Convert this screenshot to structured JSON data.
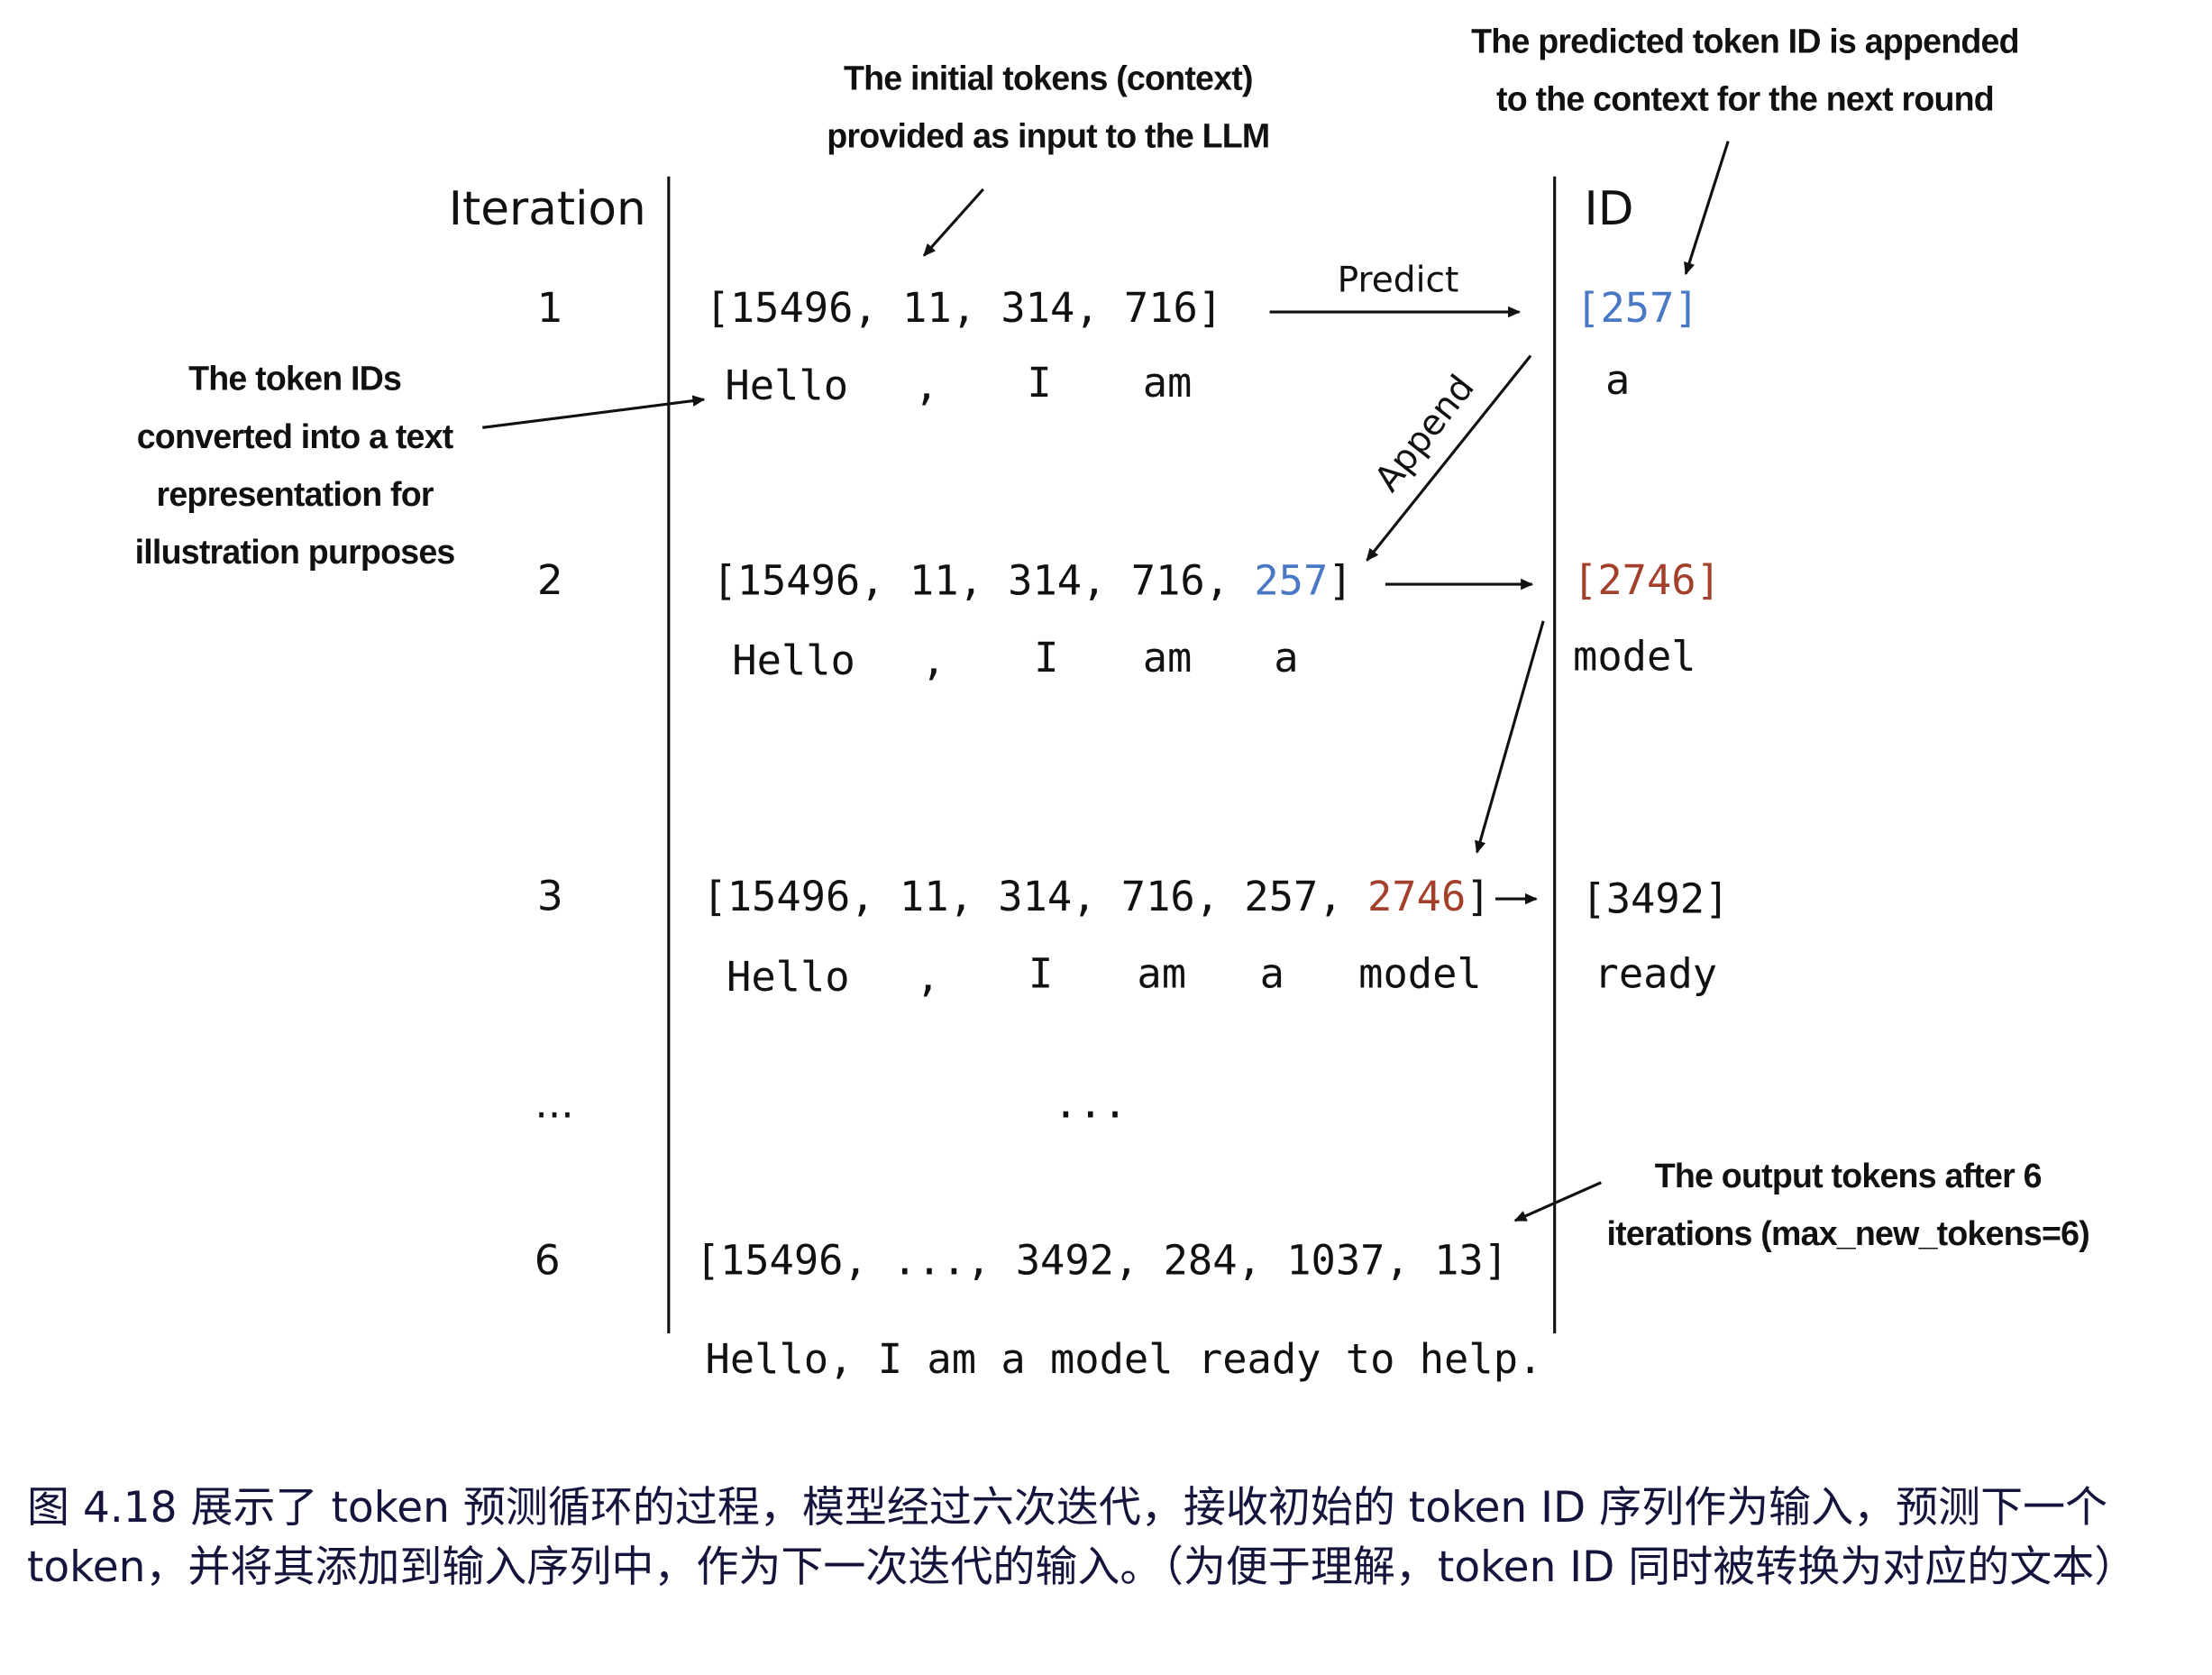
{
  "annotations": {
    "context": [
      "The initial tokens (context)",
      "provided as input to the LLM"
    ],
    "appended": [
      "The predicted token ID is appended",
      "to the context for the next round"
    ],
    "text_repr": [
      "The token IDs",
      "converted into a text",
      "representation for",
      "illustration purposes"
    ],
    "output": [
      "The output tokens after 6",
      "iterations (max_new_tokens=6)"
    ]
  },
  "headers": {
    "iteration": "Iteration",
    "id": "ID"
  },
  "labels": {
    "predict": "Predict",
    "append": "Append"
  },
  "colors": {
    "blue": "#4a78c4",
    "red": "#a3402c"
  },
  "rows": [
    {
      "iteration": "1",
      "ids": "[15496, 11, 314, 716]",
      "tokens": [
        "Hello",
        ",",
        "I",
        "am"
      ],
      "predicted_id": "[257]",
      "predicted_token": "a"
    },
    {
      "iteration": "2",
      "ids_prefix": "[15496, 11, 314, 716, ",
      "ids_new": "257",
      "ids_suffix": "]",
      "tokens": [
        "Hello",
        ",",
        "I",
        "am",
        "a"
      ],
      "predicted_id": "[2746]",
      "predicted_token": "model"
    },
    {
      "iteration": "3",
      "ids_prefix": "[15496, 11, 314, 716, 257, ",
      "ids_new": "2746",
      "ids_suffix": "]",
      "tokens": [
        "Hello",
        ",",
        "I",
        "am",
        "a",
        "model"
      ],
      "predicted_id": "[3492]",
      "predicted_token": "ready"
    },
    {
      "iteration": "...",
      "ids": "..."
    },
    {
      "iteration": "6",
      "ids": "[15496, ..., 3492, 284, 1037, 13]",
      "text": "Hello, I am a model ready to help."
    }
  ],
  "caption": "图 4.18 展示了 token 预测循环的过程，模型经过六次迭代，接收初始的 token ID 序列作为输入，预测下一个 token，并将其添加到输入序列中，作为下一次迭代的输入。（为便于理解，token ID 同时被转换为对应的文本）"
}
